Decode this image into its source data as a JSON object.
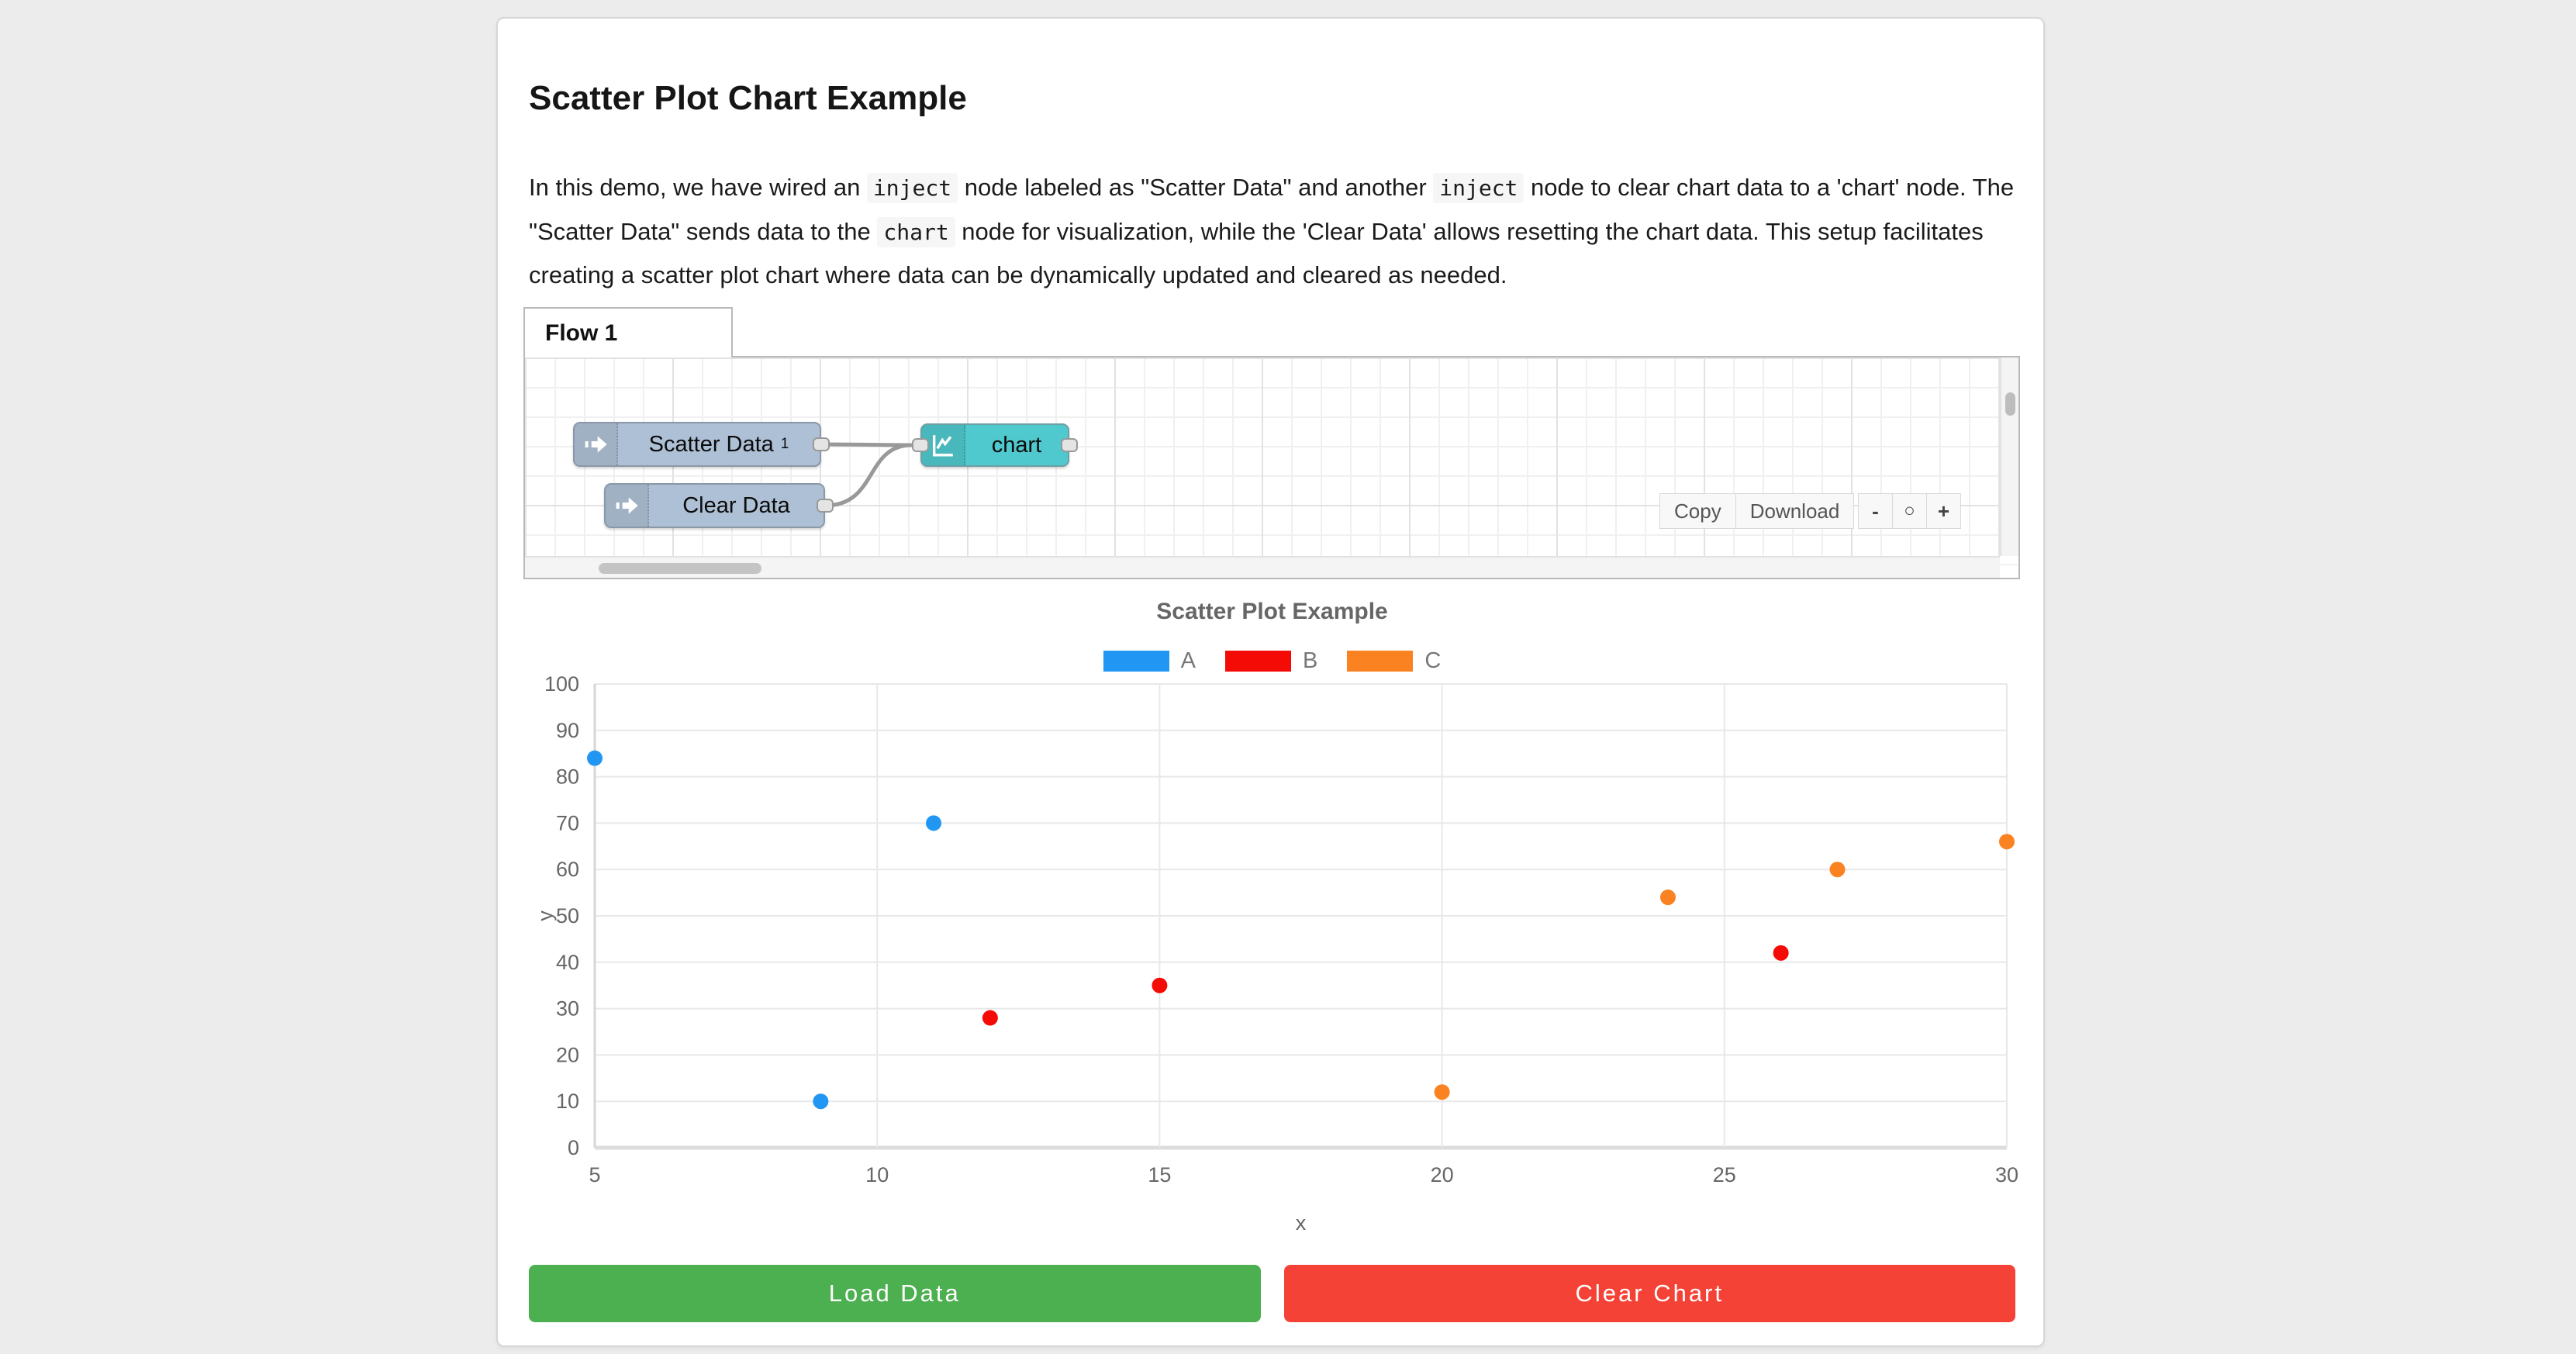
{
  "page": {
    "title": "Scatter Plot Chart Example"
  },
  "intro": {
    "segments": [
      {
        "text": "In this demo, we have wired an ",
        "code": false
      },
      {
        "text": "inject",
        "code": true
      },
      {
        "text": " node labeled as \"Scatter Data\" and another ",
        "code": false
      },
      {
        "text": "inject",
        "code": true
      },
      {
        "text": " node to clear chart data to a 'chart' node. The \"Scatter Data\" sends data to the ",
        "code": false
      },
      {
        "text": "chart",
        "code": true
      },
      {
        "text": " node for visualization, while the 'Clear Data' allows resetting the chart data. This setup facilitates creating a scatter plot chart where data can be dynamically updated and cleared as needed.",
        "code": false
      }
    ]
  },
  "flow": {
    "tab_label": "Flow 1",
    "nodes": [
      {
        "label": "Scatter Data",
        "sup": "1",
        "type": "inject"
      },
      {
        "label": "Clear Data",
        "type": "inject"
      },
      {
        "label": "chart",
        "type": "chart"
      }
    ],
    "controls": {
      "copy": "Copy",
      "download": "Download",
      "zoom_out": "-",
      "zoom_reset": "○",
      "zoom_in": "+"
    }
  },
  "chart_data": {
    "type": "scatter",
    "title": "Scatter Plot Example",
    "xlabel": "x",
    "ylabel": "y",
    "xlim": [
      5,
      30
    ],
    "ylim": [
      0,
      100
    ],
    "x_ticks": [
      5,
      10,
      15,
      20,
      25,
      30
    ],
    "y_ticks": [
      0,
      10,
      20,
      30,
      40,
      50,
      60,
      70,
      80,
      90,
      100
    ],
    "grid": true,
    "legend_position": "top",
    "series": [
      {
        "name": "A",
        "color": "#2196f3",
        "points": [
          [
            5,
            84
          ],
          [
            9,
            10
          ],
          [
            11,
            70
          ]
        ]
      },
      {
        "name": "B",
        "color": "#f40b06",
        "points": [
          [
            12,
            28
          ],
          [
            15,
            35
          ],
          [
            26,
            42
          ]
        ]
      },
      {
        "name": "C",
        "color": "#fb8220",
        "points": [
          [
            20,
            12
          ],
          [
            24,
            54
          ],
          [
            27,
            60
          ],
          [
            30,
            66
          ]
        ]
      }
    ]
  },
  "actions": {
    "load_label": "Load Data",
    "clear_label": "Clear Chart"
  },
  "colors": {
    "load_button": "#4caf50",
    "clear_button": "#f44336",
    "node_inject": "#aec0d5",
    "node_chart": "#4fc8ce",
    "wire": "#999999"
  }
}
